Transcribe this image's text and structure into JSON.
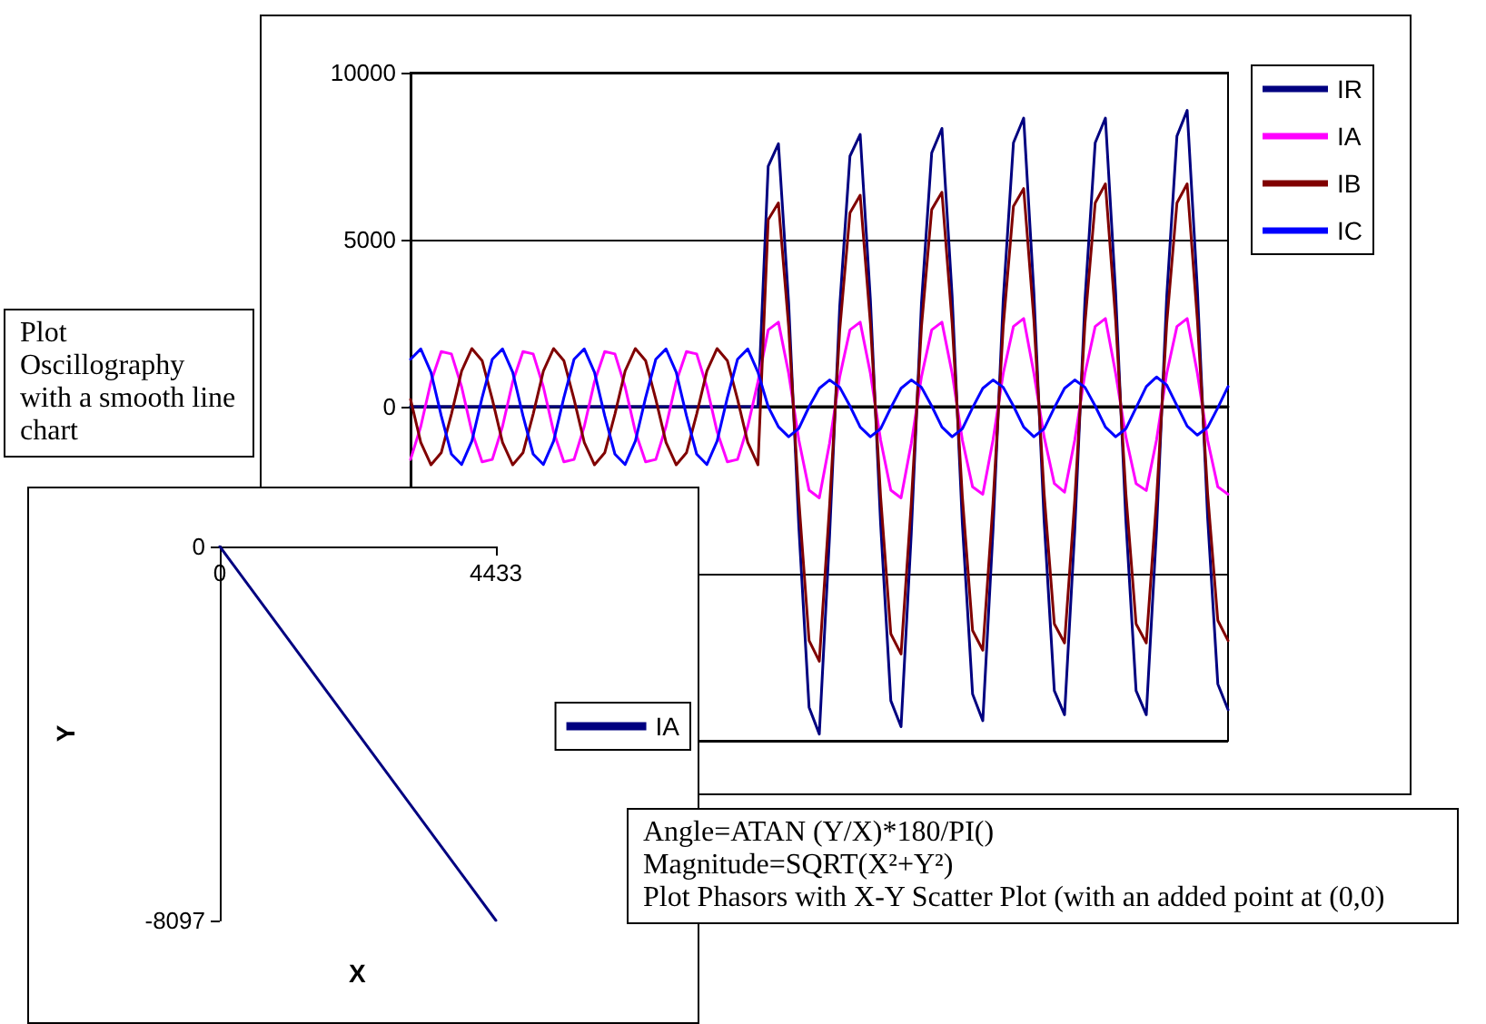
{
  "chart_data": [
    {
      "type": "line",
      "categories": [
        null,
        null,
        null,
        null,
        null,
        null,
        null,
        null,
        null,
        null,
        null,
        null,
        null,
        null,
        null,
        null,
        null,
        null,
        null,
        null,
        null,
        null,
        null,
        null,
        null,
        null,
        null,
        null,
        null,
        null,
        null,
        null,
        null,
        null,
        null,
        null,
        null,
        null,
        null,
        null,
        null,
        null,
        null,
        null,
        null,
        null,
        null,
        null,
        null,
        null,
        null,
        null,
        null,
        null,
        null,
        null,
        null,
        null,
        null,
        null,
        null,
        null,
        null,
        null,
        null,
        null,
        null,
        null,
        null,
        null,
        null,
        null,
        null,
        null,
        null,
        null,
        null,
        null,
        null,
        null,
        null
      ],
      "series": [
        {
          "name": "IR",
          "color": "#000080",
          "values": [
            0,
            0,
            0,
            0,
            0,
            0,
            0,
            0,
            0,
            0,
            0,
            0,
            0,
            0,
            0,
            0,
            0,
            0,
            0,
            0,
            0,
            0,
            0,
            0,
            0,
            0,
            0,
            0,
            0,
            0,
            0,
            0,
            0,
            0,
            0,
            7200,
            7870,
            3100,
            -3600,
            -9000,
            -9800,
            -3900,
            3000,
            7500,
            8150,
            3200,
            -3500,
            -8800,
            -9580,
            -3800,
            3100,
            7600,
            8330,
            3300,
            -3500,
            -8600,
            -9400,
            -3700,
            3200,
            7900,
            8640,
            3400,
            -3400,
            -8500,
            -9220,
            -3700,
            3200,
            7900,
            8640,
            3400,
            -3400,
            -8500,
            -9220,
            -3700,
            3300,
            8100,
            8870,
            3500,
            -3300,
            -8300,
            -9070
          ]
        },
        {
          "name": "IA",
          "color": "#ff00ff",
          "values": [
            -1580,
            -590,
            750,
            1650,
            1580,
            590,
            -750,
            -1650,
            -1580,
            -590,
            750,
            1650,
            1580,
            590,
            -750,
            -1650,
            -1580,
            -590,
            750,
            1650,
            1580,
            590,
            -750,
            -1650,
            -1580,
            -590,
            750,
            1650,
            1580,
            590,
            -750,
            -1650,
            -1580,
            -590,
            750,
            2300,
            2530,
            1000,
            -1000,
            -2500,
            -2730,
            -1100,
            900,
            2300,
            2530,
            1000,
            -1000,
            -2500,
            -2730,
            -1100,
            900,
            2300,
            2530,
            1000,
            -1000,
            -2400,
            -2620,
            -1000,
            1000,
            2400,
            2640,
            1000,
            -900,
            -2300,
            -2560,
            -1000,
            1000,
            2400,
            2640,
            1000,
            -900,
            -2300,
            -2510,
            -1000,
            1000,
            2400,
            2640,
            1000,
            -1000,
            -2400,
            -2620
          ]
        },
        {
          "name": "IB",
          "color": "#800000",
          "values": [
            220,
            -1070,
            -1740,
            -1380,
            -220,
            1070,
            1740,
            1380,
            220,
            -1070,
            -1740,
            -1380,
            -220,
            1070,
            1740,
            1380,
            220,
            -1070,
            -1740,
            -1380,
            -220,
            1070,
            1740,
            1380,
            220,
            -1070,
            -1740,
            -1380,
            -220,
            1070,
            1740,
            1380,
            220,
            -1070,
            -1740,
            5600,
            6100,
            2400,
            -2800,
            -7000,
            -7620,
            -3000,
            2300,
            5800,
            6330,
            2500,
            -2700,
            -6800,
            -7400,
            -2900,
            2400,
            5900,
            6420,
            2500,
            -2700,
            -6700,
            -7290,
            -2900,
            2400,
            6000,
            6530,
            2600,
            -2600,
            -6500,
            -7070,
            -2800,
            2500,
            6100,
            6670,
            2600,
            -2600,
            -6500,
            -7070,
            -2800,
            2500,
            6100,
            6670,
            2600,
            -2600,
            -6400,
            -7000
          ]
        },
        {
          "name": "IC",
          "color": "#0000ff",
          "values": [
            1420,
            1730,
            1030,
            -270,
            -1420,
            -1730,
            -1030,
            270,
            1420,
            1730,
            1030,
            -270,
            -1420,
            -1730,
            -1030,
            270,
            1420,
            1730,
            1030,
            -270,
            -1420,
            -1730,
            -1030,
            270,
            1420,
            1730,
            1030,
            -270,
            -1420,
            -1730,
            -1030,
            270,
            1420,
            1730,
            1030,
            0,
            -600,
            -900,
            -650,
            0,
            550,
            800,
            580,
            20,
            -610,
            -900,
            -660,
            -30,
            550,
            800,
            580,
            20,
            -610,
            -900,
            -660,
            -30,
            550,
            800,
            580,
            20,
            -610,
            -900,
            -660,
            -30,
            550,
            800,
            580,
            20,
            -610,
            -900,
            -660,
            -30,
            600,
            890,
            650,
            30,
            -580,
            -850,
            -620,
            -30,
            600
          ]
        }
      ],
      "ylim": [
        -10000,
        10000
      ],
      "yticks": [
        {
          "value": -10000,
          "label": null
        },
        {
          "value": -5000,
          "label": null
        },
        0,
        5000,
        10000
      ],
      "grid": "y",
      "legend": "top right",
      "marker": "none",
      "annotations": [
        "Plot Oscillography with a smooth line chart"
      ]
    },
    {
      "type": "line",
      "series": [
        {
          "name": "IA",
          "color": "#000080",
          "x": [
            0,
            4433
          ],
          "values": [
            0,
            -8097
          ]
        }
      ],
      "xlim": [
        0,
        4433
      ],
      "xticks": [
        0,
        4433
      ],
      "ylim": [
        -8097,
        0
      ],
      "yticks": [
        -8097,
        0
      ],
      "xlabel": "X",
      "ylabel": "Y",
      "legend": "right",
      "marker": "none",
      "annotations": [
        "Angle=ATAN (Y/X)*180/PI()",
        "Magnitude=SQRT(X²+Y²)",
        "Plot Phasors with X-Y Scatter Plot (with an added point at (0,0)"
      ]
    }
  ]
}
